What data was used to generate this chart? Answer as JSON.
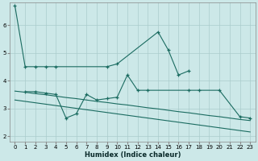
{
  "xlabel": "Humidex (Indice chaleur)",
  "bg_color": "#cce8e8",
  "grid_color": "#aacccc",
  "line_color": "#1a6b60",
  "xlim": [
    -0.5,
    23.5
  ],
  "ylim": [
    1.8,
    6.8
  ],
  "yticks": [
    2,
    3,
    4,
    5,
    6
  ],
  "xticks": [
    0,
    1,
    2,
    3,
    4,
    5,
    6,
    7,
    8,
    9,
    10,
    11,
    12,
    13,
    14,
    15,
    16,
    17,
    18,
    19,
    20,
    21,
    22,
    23
  ],
  "line1_x": [
    0,
    1,
    2,
    3,
    4,
    9,
    10,
    14,
    15,
    16,
    17
  ],
  "line1_y": [
    6.7,
    4.5,
    4.5,
    4.5,
    4.5,
    4.5,
    4.6,
    5.75,
    5.1,
    4.2,
    4.35
  ],
  "line2_x": [
    1,
    2,
    3,
    4,
    5,
    6,
    7,
    8,
    9,
    10,
    11,
    12,
    13,
    17,
    18,
    20,
    22,
    23
  ],
  "line2_y": [
    3.6,
    3.6,
    3.55,
    3.5,
    2.65,
    2.8,
    3.5,
    3.3,
    3.35,
    3.4,
    4.2,
    3.65,
    3.65,
    3.65,
    3.65,
    3.65,
    2.7,
    2.65
  ],
  "line3_x": [
    0,
    1,
    2,
    3,
    4,
    5,
    6,
    7,
    8,
    9,
    10,
    11,
    12,
    13,
    14,
    15,
    16,
    17,
    18,
    19,
    20,
    21,
    22,
    23
  ],
  "line3_y": [
    3.62,
    3.58,
    3.53,
    3.49,
    3.44,
    3.39,
    3.35,
    3.3,
    3.25,
    3.21,
    3.16,
    3.12,
    3.07,
    3.02,
    2.98,
    2.93,
    2.88,
    2.84,
    2.79,
    2.74,
    2.7,
    2.65,
    2.6,
    2.56
  ],
  "line4_x": [
    0,
    1,
    2,
    3,
    4,
    5,
    6,
    7,
    8,
    9,
    10,
    11,
    12,
    13,
    14,
    15,
    16,
    17,
    18,
    19,
    20,
    21,
    22,
    23
  ],
  "line4_y": [
    3.3,
    3.25,
    3.2,
    3.15,
    3.1,
    3.05,
    3.0,
    2.95,
    2.9,
    2.85,
    2.8,
    2.75,
    2.7,
    2.65,
    2.6,
    2.55,
    2.5,
    2.45,
    2.4,
    2.35,
    2.3,
    2.25,
    2.2,
    2.15
  ]
}
